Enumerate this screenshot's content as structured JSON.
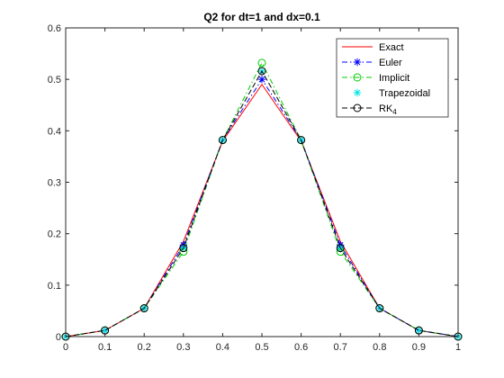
{
  "chart_data": {
    "type": "line",
    "title": "Q2 for dt=1 and dx=0.1",
    "xlabel": "",
    "ylabel": "",
    "xlim": [
      0,
      1
    ],
    "ylim": [
      0,
      0.6
    ],
    "xticks": [
      0,
      0.1,
      0.2,
      0.3,
      0.4,
      0.5,
      0.6,
      0.7,
      0.8,
      0.9,
      1
    ],
    "yticks": [
      0,
      0.1,
      0.2,
      0.3,
      0.4,
      0.5,
      0.6
    ],
    "grid": false,
    "legend_position": "top-right",
    "x": [
      0,
      0.1,
      0.2,
      0.3,
      0.4,
      0.5,
      0.6,
      0.7,
      0.8,
      0.9,
      1
    ],
    "series": [
      {
        "name": "Exact",
        "color": "#ff0000",
        "dash": "solid",
        "marker": "none",
        "values": [
          0,
          0.012,
          0.055,
          0.185,
          0.38,
          0.49,
          0.38,
          0.185,
          0.055,
          0.012,
          0
        ]
      },
      {
        "name": "Euler",
        "color": "#0000ff",
        "dash": "dashdot",
        "marker": "asterisk",
        "values": [
          0,
          0.012,
          0.055,
          0.178,
          0.382,
          0.5,
          0.382,
          0.178,
          0.055,
          0.012,
          0
        ]
      },
      {
        "name": "Implicit",
        "color": "#00cc00",
        "dash": "dashdot",
        "marker": "circle",
        "values": [
          0,
          0.012,
          0.055,
          0.165,
          0.382,
          0.532,
          0.382,
          0.165,
          0.055,
          0.012,
          0
        ]
      },
      {
        "name": "Trapezoidal",
        "color": "#00e5e5",
        "dash": "none",
        "marker": "asterisk",
        "values": [
          0,
          0.012,
          0.055,
          0.172,
          0.382,
          0.516,
          0.382,
          0.172,
          0.055,
          0.012,
          0
        ]
      },
      {
        "name": "RK",
        "name_sub": "4",
        "color": "#000000",
        "dash": "dashed",
        "marker": "circle",
        "values": [
          0,
          0.012,
          0.055,
          0.172,
          0.382,
          0.516,
          0.382,
          0.172,
          0.055,
          0.012,
          0
        ]
      }
    ]
  }
}
